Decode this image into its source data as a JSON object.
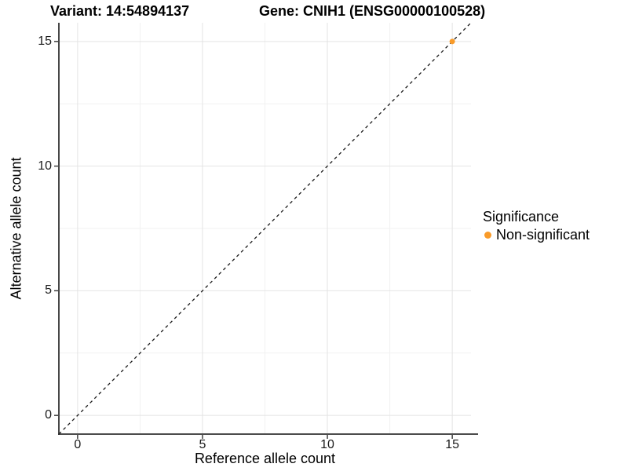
{
  "chart_data": {
    "type": "scatter",
    "title_left": "Variant: 14:54894137",
    "title_right": "Gene: CNIH1 (ENSG00000100528)",
    "xlabel": "Reference allele count",
    "ylabel": "Alternative allele count",
    "xlim": [
      -0.75,
      15.75
    ],
    "ylim": [
      -0.75,
      15.75
    ],
    "x_ticks": [
      0,
      5,
      10,
      15
    ],
    "y_ticks": [
      0,
      5,
      10,
      15
    ],
    "x_tick_labels": [
      "0",
      "5",
      "10",
      "15"
    ],
    "y_tick_labels": [
      "0",
      "5",
      "10",
      "15"
    ],
    "x_minor": [
      2.5,
      7.5,
      12.5
    ],
    "y_minor": [
      2.5,
      7.5,
      12.5
    ],
    "grid": "major+minor",
    "points": [
      {
        "x": 15,
        "y": 15,
        "series": "Non-significant"
      }
    ],
    "abline": {
      "slope": 1,
      "intercept": 0,
      "style": "dashed",
      "color": "#1a1a1a"
    },
    "legend": {
      "position": "right",
      "title": "Significance",
      "items": [
        {
          "label": "Non-significant",
          "color": "#F99B29"
        }
      ]
    },
    "colors": {
      "point": "#F99B29",
      "grid_major": "#E4E4E4",
      "grid_minor": "#F1F1F1",
      "axis_line": "#333333",
      "tick_mark": "#333333",
      "background": "#FFFFFF"
    }
  }
}
